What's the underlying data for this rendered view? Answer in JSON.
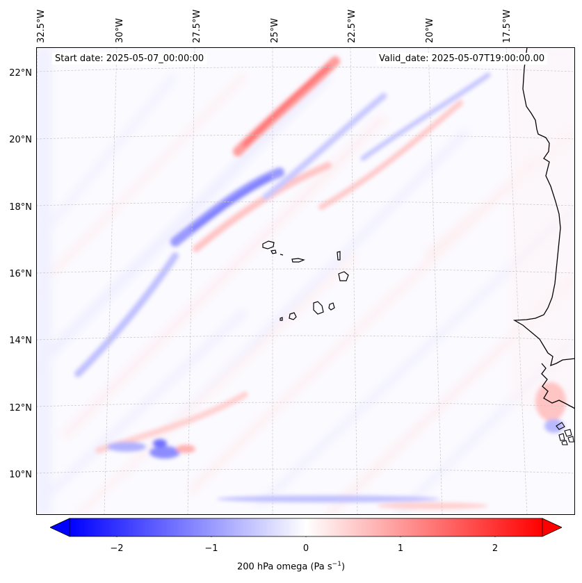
{
  "map": {
    "start_date": "Start date: 2025-05-07_00:00:00",
    "valid_date": "Valid_date: 2025-05-07T19:00:00.00",
    "lon_labels": [
      "32.5°W",
      "30°W",
      "27.5°W",
      "25°W",
      "22.5°W",
      "20°W",
      "17.5°W"
    ],
    "lat_labels": [
      "22°N",
      "20°N",
      "18°N",
      "16°N",
      "14°N",
      "12°N",
      "10°N"
    ],
    "colors": {
      "negative": "#0000ff",
      "neutral": "#ffffff",
      "positive": "#ff0000",
      "coast": "#000000"
    }
  },
  "colorbar": {
    "ticks": [
      "−2",
      "−1",
      "0",
      "1",
      "2"
    ],
    "label": "200 hPa omega (Pa s",
    "label_exp": "−1",
    "label_close": ")",
    "range": [
      -2.5,
      2.5
    ]
  }
}
